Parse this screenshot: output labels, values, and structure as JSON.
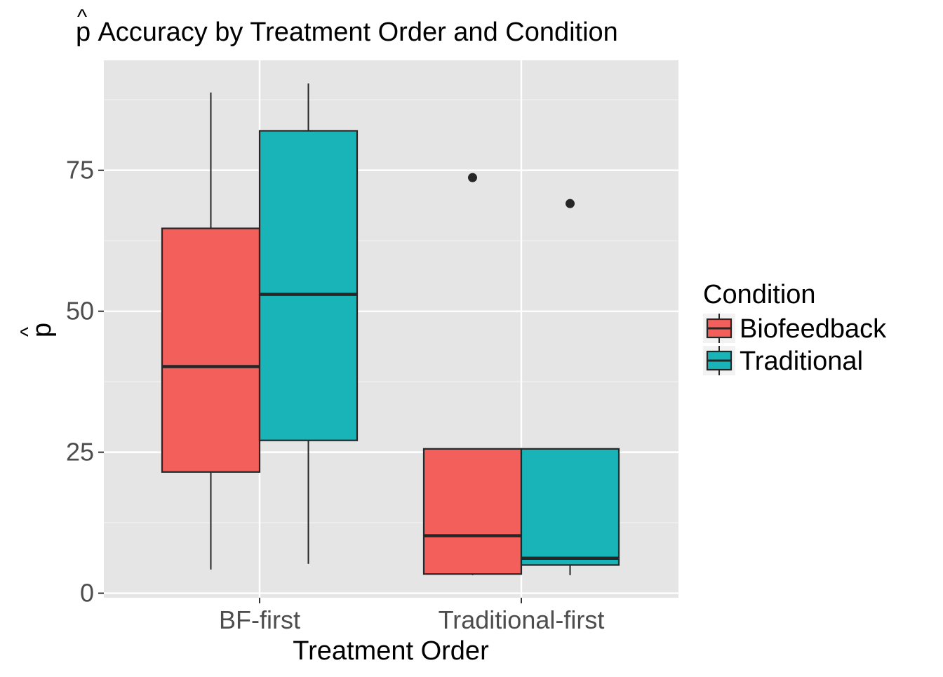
{
  "chart_data": {
    "type": "boxplot",
    "title": "p̂ Accuracy by Treatment Order and Condition",
    "title_mark": "^",
    "title_letter": "p",
    "title_rest": " Accuracy by Treatment Order and Condition",
    "xlabel": "Treatment Order",
    "ylabel": "p̂",
    "ylabel_mark": "^",
    "ylabel_letter": "p",
    "categories": [
      "BF-first",
      "Traditional-first"
    ],
    "yticks": [
      0,
      25,
      50,
      75
    ],
    "ylim": [
      -0.8,
      94.5
    ],
    "grid": true,
    "legend": {
      "title": "Condition",
      "position": "right",
      "entries": [
        "Biofeedback",
        "Traditional"
      ]
    },
    "series": [
      {
        "name": "Biofeedback",
        "color": "#F35F5B",
        "boxes": [
          {
            "category": "BF-first",
            "min": 4.2,
            "q1": 21.5,
            "median": 40.2,
            "q3": 64.7,
            "max": 88.8,
            "outliers": []
          },
          {
            "category": "Traditional-first",
            "min": 3.2,
            "q1": 3.4,
            "median": 10.2,
            "q3": 25.6,
            "max": 25.6,
            "outliers": [
              73.7
            ]
          }
        ]
      },
      {
        "name": "Traditional",
        "color": "#19B4B8",
        "boxes": [
          {
            "category": "BF-first",
            "min": 5.2,
            "q1": 27.1,
            "median": 53.0,
            "q3": 82.0,
            "max": 90.4,
            "outliers": []
          },
          {
            "category": "Traditional-first",
            "min": 3.2,
            "q1": 5.0,
            "median": 6.2,
            "q3": 25.6,
            "max": 25.6,
            "outliers": [
              69.1
            ]
          }
        ]
      }
    ],
    "colors": {
      "panel": "#E5E5E5",
      "grid_major": "#FFFFFF",
      "grid_minor": "#F2F2F2",
      "box_outline": "#262626",
      "axis_text": "#4D4D4D",
      "text": "#000000"
    }
  }
}
